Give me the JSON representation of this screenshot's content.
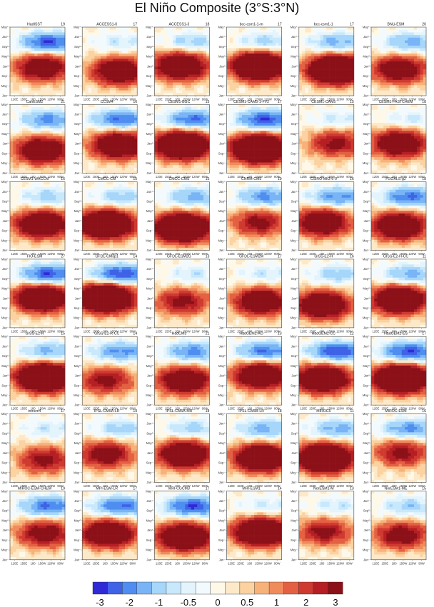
{
  "title": "El Niño Composite (3°S:3°N)",
  "chart_data": {
    "type": "heatmap",
    "title": "El Niño Composite (3°S:3°N)",
    "x_ticks": [
      "120E",
      "150E",
      "180",
      "150W",
      "120W",
      "90W"
    ],
    "y_ticks": [
      "Jan⁻",
      "May⁻",
      "Sep⁻",
      "Jan⁰",
      "May⁰",
      "Sep⁰",
      "Jan⁺",
      "May⁺"
    ],
    "colorbar": {
      "levels": [
        -3,
        -2.5,
        -2,
        -1.5,
        -1,
        -0.75,
        -0.5,
        -0.25,
        0,
        0.25,
        0.5,
        0.75,
        1,
        1.5,
        2,
        2.5,
        3
      ],
      "labels": [
        "-3",
        "-2",
        "-1",
        "-0.5",
        "0",
        "0.5",
        "1",
        "2",
        "3"
      ],
      "colors": [
        "#2e2ad6",
        "#3f62e6",
        "#4f8ef0",
        "#78b4f6",
        "#a6d6fa",
        "#c8e8fc",
        "#e3f4fd",
        "#f3fafe",
        "#fdf8e8",
        "#fde8c8",
        "#fbd2a0",
        "#f7b27a",
        "#f08b5c",
        "#e36142",
        "#cf3a30",
        "#b51f24",
        "#8c1018"
      ]
    },
    "panels": [
      {
        "name": "HadISST",
        "count": "19"
      },
      {
        "name": "ACCESS1-0",
        "count": "17"
      },
      {
        "name": "ACCESS1-3",
        "count": "18"
      },
      {
        "name": "bcc-csm1-1-m",
        "count": "17"
      },
      {
        "name": "bcc-csm1-1",
        "count": "17"
      },
      {
        "name": "BNU-ESM",
        "count": "20"
      },
      {
        "name": "CanESM2",
        "count": "21"
      },
      {
        "name": "CCSM4",
        "count": "16"
      },
      {
        "name": "CESM1-BGC",
        "count": "15"
      },
      {
        "name": "CESM1-CAM5-1-FV2",
        "count": "17"
      },
      {
        "name": "CESM1-CAM5",
        "count": "15"
      },
      {
        "name": "CESM1-FASTCHEM",
        "count": "18"
      },
      {
        "name": "CESM1-WACCM",
        "count": "16"
      },
      {
        "name": "CMCC-CM",
        "count": "15"
      },
      {
        "name": "CMCC-CMS",
        "count": "15"
      },
      {
        "name": "CNRM-CM5",
        "count": "19"
      },
      {
        "name": "CSIRO-Mk3-6-0",
        "count": "16"
      },
      {
        "name": "FGOALS-g2",
        "count": "18"
      },
      {
        "name": "FIO-ESM",
        "count": "27"
      },
      {
        "name": "GFDL-CM3p1",
        "count": "14"
      },
      {
        "name": "GFDL-ESM2G",
        "count": "13"
      },
      {
        "name": "GFDL-ESM2M",
        "count": "17"
      },
      {
        "name": "GISS-E2-H",
        "count": "16"
      },
      {
        "name": "GISS-E2-H-CC",
        "count": "11"
      },
      {
        "name": "GISS-E2-R",
        "count": "15"
      },
      {
        "name": "GISS-E2-R-CC",
        "count": "14"
      },
      {
        "name": "HadCM3",
        "count": "21"
      },
      {
        "name": "HadGEM2-AO",
        "count": "13"
      },
      {
        "name": "HadGEM2-CC",
        "count": "12"
      },
      {
        "name": "HadGEM2-ES",
        "count": "17"
      },
      {
        "name": "inmcm4",
        "count": "17"
      },
      {
        "name": "IPSL-CM5A-LR",
        "count": "19"
      },
      {
        "name": "IPSL-CM5A-MR",
        "count": "18"
      },
      {
        "name": "IPSL-CM5B-LR",
        "count": "18"
      },
      {
        "name": "MIROC5",
        "count": "11"
      },
      {
        "name": "MIROC-ESM",
        "count": "16"
      },
      {
        "name": "MIROC-ESM-CHEM",
        "count": "19"
      },
      {
        "name": "MPI-ESM-LR",
        "count": "17"
      },
      {
        "name": "MRI-CGCM3",
        "count": "17"
      },
      {
        "name": "MRI-ESM1",
        "count": "14"
      },
      {
        "name": "NorESM1-M",
        "count": "13"
      },
      {
        "name": "NorESM1-ME",
        "count": "15"
      }
    ]
  }
}
